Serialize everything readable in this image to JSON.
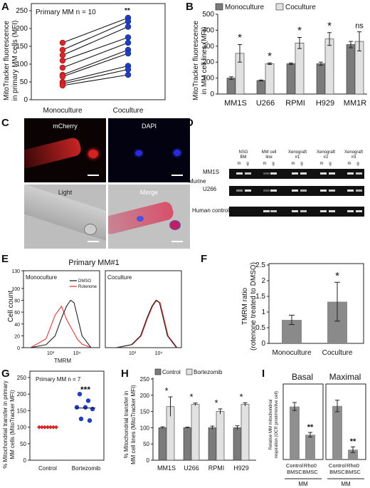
{
  "panel_letters": [
    "A",
    "B",
    "C",
    "D",
    "E",
    "F",
    "G",
    "H",
    "I"
  ],
  "colors": {
    "red": "#d7272b",
    "blue": "#1f3fbf",
    "dark_bar": "#7b7b7b",
    "light_bar": "#e1e1e1",
    "tmrm_bar": "#8a8a8a",
    "resp_bar": "#8f8f8f"
  },
  "panel_a": {
    "ylabel_line1": "MitoTracker fluorescence",
    "ylabel_line2": "in primary MM cells (MFI)",
    "legend": "Primary MM n = 10",
    "yticks": [
      "0",
      "50",
      "100",
      "150",
      "200",
      "250"
    ],
    "xlabels": [
      "Monoculture",
      "Coculture"
    ],
    "sig": "**"
  },
  "panel_b": {
    "ylabel_line1": "MitoTracker fluorescence",
    "ylabel_line2": "in MM cell lines (MFI)",
    "legend": [
      "Monoculture",
      "Coculture"
    ],
    "yticks": [
      "0",
      "100",
      "200",
      "300",
      "400",
      "500"
    ],
    "sig": [
      "*",
      "*",
      "*",
      "*",
      "ns"
    ]
  },
  "panel_c": {
    "labels": [
      "mCherry",
      "DAPI",
      "Light",
      "Merge"
    ]
  },
  "panel_d": {
    "col_headers": [
      "NSG BM",
      "MM cell line",
      "Xenograft #1",
      "Xenograft #2",
      "Xenograft #3"
    ],
    "sub": [
      "m",
      "g"
    ],
    "row_labels": [
      "MM1S",
      "U266",
      "Human control"
    ],
    "group_label": "Murine"
  },
  "panel_e": {
    "title": "Primary MM#1",
    "left_label": "Monoculture",
    "right_label": "Coculture",
    "legend": [
      "DMSO",
      "Rotenone"
    ],
    "ylabel": "Cell count",
    "xlabel": "TMRM",
    "yticks": [
      "0",
      "20",
      "40",
      "60",
      "80",
      "100",
      "130"
    ],
    "xticks": [
      "10³",
      "10⁴"
    ]
  },
  "panel_f": {
    "ylabel_line1": "TMRM ratio",
    "ylabel_line2": "(rotenone treated to DMSO)",
    "yticks": [
      "0",
      "0.5",
      "1",
      "1.5",
      "2",
      "2.5"
    ],
    "xlabels": [
      "Monoculture",
      "Coculture"
    ],
    "sig": "*"
  },
  "panel_g": {
    "ylabel_line1": "% Mitochondrial transfer in primary",
    "ylabel_line2": "MM cells (MitoTracker MFI)",
    "legend": "Primary MM n = 7",
    "yticks": [
      "0",
      "50",
      "100",
      "150",
      "200",
      "250"
    ],
    "xlabels": [
      "Control",
      "Bortezomib"
    ],
    "sig": "***"
  },
  "panel_h": {
    "ylabel_line1": "% Mitochondrial transfer in",
    "ylabel_line2": "MM cell lines (MitoTracker MFI)",
    "legend": [
      "Control",
      "Bortezomib"
    ],
    "yticks": [
      "0",
      "50",
      "100",
      "150",
      "200",
      "250"
    ],
    "sig": [
      "*",
      "*",
      "*",
      "*"
    ]
  },
  "panel_i": {
    "ylabel_line1": "Relative MM mitochondrial",
    "ylabel_line2": "respiration (OCR pmol/min/live cell)",
    "titles": [
      "Basal",
      "Maximal"
    ],
    "xlabels": [
      "Control BMSC",
      "Rho0 BMSC"
    ],
    "group": "MM",
    "sig": "**"
  },
  "chart_data": [
    {
      "type": "scatter",
      "panel": "A",
      "title": "",
      "ylabel": "MitoTracker fluorescence in primary MM cells (MFI)",
      "categories": [
        "Monoculture",
        "Coculture"
      ],
      "ylim": [
        0,
        250
      ],
      "series": [
        {
          "name": "Monoculture",
          "values": [
            160,
            140,
            125,
            110,
            90,
            70,
            65,
            50,
            45,
            40
          ]
        },
        {
          "name": "Coculture",
          "values": [
            230,
            220,
            205,
            175,
            160,
            140,
            130,
            95,
            85,
            70
          ]
        }
      ]
    },
    {
      "type": "bar",
      "panel": "B",
      "ylabel": "MitoTracker fluorescence in MM cell lines (MFI)",
      "categories": [
        "MM1S",
        "U266",
        "RPMI",
        "H929",
        "MM1R"
      ],
      "ylim": [
        0,
        500
      ],
      "series": [
        {
          "name": "Monoculture",
          "values": [
            100,
            85,
            190,
            190,
            310
          ],
          "errors": [
            8,
            3,
            5,
            10,
            20
          ]
        },
        {
          "name": "Coculture",
          "values": [
            255,
            190,
            320,
            345,
            330
          ],
          "errors": [
            55,
            5,
            35,
            40,
            60
          ]
        }
      ]
    },
    {
      "type": "bar",
      "panel": "F",
      "ylabel": "TMRM ratio (rotenone treated to DMSO)",
      "categories": [
        "Monoculture",
        "Coculture"
      ],
      "ylim": [
        0,
        2.5
      ],
      "values": [
        0.75,
        1.33
      ],
      "errors": [
        0.15,
        0.62
      ]
    },
    {
      "type": "scatter",
      "panel": "G",
      "ylabel": "% Mitochondrial transfer in primary MM cells (MitoTracker MFI)",
      "categories": [
        "Control",
        "Bortezomib"
      ],
      "ylim": [
        0,
        250
      ],
      "series": [
        {
          "name": "Control",
          "values": [
            100,
            100,
            100,
            100,
            100,
            100,
            100
          ]
        },
        {
          "name": "Bortezomib",
          "values": [
            200,
            180,
            160,
            160,
            155,
            125,
            120
          ]
        }
      ]
    },
    {
      "type": "bar",
      "panel": "H",
      "ylabel": "% Mitochondrial transfer in MM cell lines (MitoTracker MFI)",
      "categories": [
        "MM1S",
        "U266",
        "RPMI",
        "H929"
      ],
      "ylim": [
        0,
        250
      ],
      "series": [
        {
          "name": "Control",
          "values": [
            100,
            100,
            100,
            100
          ],
          "errors": [
            3,
            2,
            5,
            6
          ]
        },
        {
          "name": "Bortezomib",
          "values": [
            165,
            172,
            150,
            172
          ],
          "errors": [
            30,
            4,
            8,
            5
          ]
        }
      ]
    },
    {
      "type": "bar",
      "panel": "I",
      "ylabel": "Relative MM mitochondrial respiration (OCR pmol/min/live cell)",
      "groups": [
        "Basal",
        "Maximal"
      ],
      "categories": [
        "Control BMSC",
        "Rho0 BMSC"
      ],
      "ylim": [
        0,
        1.2
      ],
      "series": [
        {
          "name": "Basal",
          "values": [
            0.92,
            0.43
          ],
          "errors": [
            0.07,
            0.04
          ]
        },
        {
          "name": "Maximal",
          "values": [
            0.93,
            0.17
          ],
          "errors": [
            0.1,
            0.05
          ]
        }
      ]
    },
    {
      "type": "line",
      "panel": "E",
      "series": [
        {
          "name": "DMSO",
          "x": [
            1000,
            2000,
            3000,
            4000,
            5000,
            6000,
            7000,
            8000,
            10000,
            15000
          ],
          "values": [
            0,
            5,
            20,
            50,
            70,
            80,
            76,
            55,
            20,
            0
          ]
        },
        {
          "name": "Rotenone",
          "x": [
            1000,
            2000,
            3000,
            4000,
            5000,
            6000,
            7000,
            8000,
            10000,
            15000
          ],
          "values": [
            0,
            15,
            55,
            70,
            48,
            35,
            25,
            15,
            6,
            0
          ]
        }
      ]
    }
  ]
}
